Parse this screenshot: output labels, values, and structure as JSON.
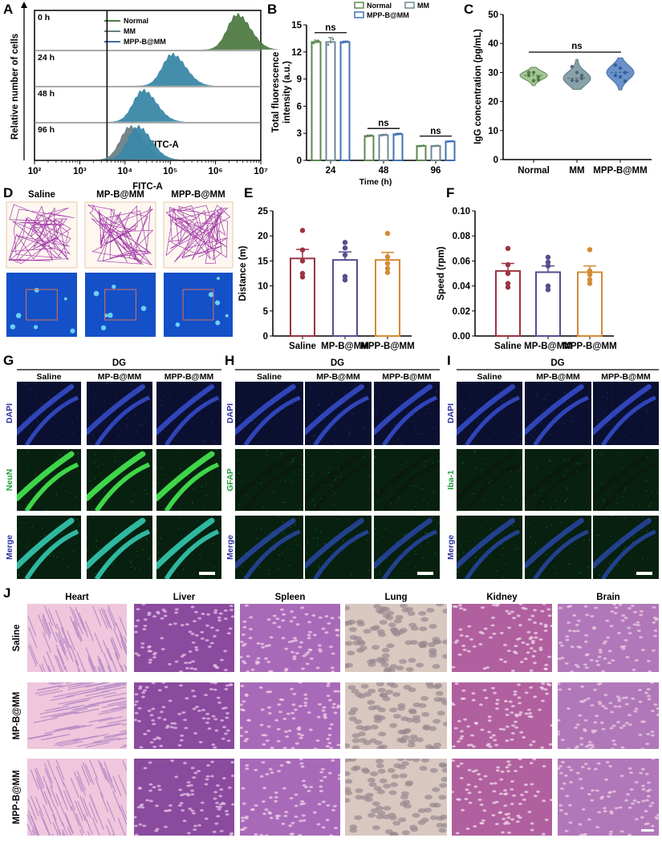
{
  "panel_labels": {
    "a": "A",
    "b": "B",
    "c": "C",
    "d": "D",
    "e": "E",
    "f": "F",
    "g": "G",
    "h": "H",
    "i": "I",
    "j": "J"
  },
  "chart_data": [
    {
      "panel": "A",
      "type": "area",
      "ylabel": "Relative number of cells",
      "xlabel": "FITC-A",
      "annotation": "FITC-A",
      "x_scale": "log",
      "xlim": [
        100,
        10000000
      ],
      "x_tick_labels": [
        "10²",
        "10³",
        "10⁴",
        "10⁵",
        "10⁶",
        "10⁷"
      ],
      "rows": [
        "0 h",
        "24 h",
        "48 h",
        "96 h"
      ],
      "legend": [
        "Normal",
        "MM",
        "MPP-B@MM"
      ],
      "colors": {
        "Normal": "#4f7a45",
        "MM": "#6b7f86",
        "MPP-B@MM": "#3a88a8"
      },
      "gate_x": 4000,
      "peaks": [
        {
          "row": "0 h",
          "series": "Normal",
          "peak_fitc": 3000000
        },
        {
          "row": "24 h",
          "series": "MPP-B@MM",
          "peak_fitc": 110000
        },
        {
          "row": "48 h",
          "series": "MPP-B@MM",
          "peak_fitc": 25000
        },
        {
          "row": "96 h",
          "series": "MM",
          "peak_fitc": 13000
        },
        {
          "row": "96 h",
          "series": "MPP-B@MM",
          "peak_fitc": 19000
        }
      ]
    },
    {
      "panel": "B",
      "type": "bar",
      "xlabel": "Time (h)",
      "ylabel": "Total fluorescence intensity (a.u.)",
      "ylabel_lines": [
        "Total fluorescence",
        "intensity (a.u.)"
      ],
      "ylim": [
        0,
        15
      ],
      "y_ticks": [
        "0",
        "3",
        "6",
        "9",
        "12",
        "15"
      ],
      "categories": [
        "24",
        "48",
        "96"
      ],
      "series": [
        {
          "name": "Normal",
          "color": "#5c8a52",
          "values": [
            13.1,
            2.7,
            1.6
          ],
          "errors": [
            0.2,
            0.1,
            0.05
          ]
        },
        {
          "name": "MM",
          "color": "#6f8893",
          "values": [
            13.1,
            2.8,
            1.6
          ],
          "errors": [
            0.5,
            0.08,
            0.05
          ]
        },
        {
          "name": "MPP-B@MM",
          "color": "#3f73b5",
          "values": [
            13.1,
            2.9,
            2.1
          ],
          "errors": [
            0.1,
            0.1,
            0.05
          ]
        }
      ],
      "significance": [
        "ns",
        "ns",
        "ns"
      ],
      "legend": "top-right"
    },
    {
      "panel": "C",
      "type": "violin",
      "ylabel": "IgG concentration  (pg/mL)",
      "ylim": [
        0,
        50
      ],
      "y_ticks": [
        "0",
        "10",
        "20",
        "30",
        "40",
        "50"
      ],
      "categories": [
        "Normal",
        "MM",
        "MPP-B@MM"
      ],
      "colors": [
        "#9cc08e",
        "#7d97a0",
        "#5b86c3"
      ],
      "point_colors": [
        "#4e7a43",
        "#4f6a74",
        "#2f5f9e"
      ],
      "ranges": [
        [
          25.5,
          31.8
        ],
        [
          24.2,
          34.5
        ],
        [
          24,
          35
        ]
      ],
      "medians": [
        29,
        28,
        30
      ],
      "points": [
        [
          30,
          30,
          28.5,
          29,
          27.2,
          27.5
        ],
        [
          32,
          30,
          28,
          27.3,
          27.1,
          29
        ],
        [
          32.5,
          31.5,
          30,
          29,
          28.5,
          27
        ]
      ],
      "significance": "ns"
    },
    {
      "panel": "E",
      "type": "bar",
      "ylabel": "Distance (m)",
      "ylim": [
        0,
        25
      ],
      "y_ticks": [
        "0",
        "5",
        "10",
        "15",
        "20",
        "25"
      ],
      "categories": [
        "Saline",
        "MP-B@MM",
        "MPP-B@MM"
      ],
      "colors": [
        "#9c3442",
        "#5b4b8c",
        "#d48a34"
      ],
      "values": [
        15.5,
        15.2,
        15.2
      ],
      "errors": [
        1.8,
        1.6,
        1.5
      ],
      "points": [
        [
          21.1,
          17.2,
          15,
          12.5,
          11.8
        ],
        [
          18.7,
          17.6,
          16.2,
          11.9,
          11.2
        ],
        [
          20.5,
          15.8,
          14.5,
          13.5,
          12.7
        ]
      ]
    },
    {
      "panel": "F",
      "type": "bar",
      "ylabel": "Speed (rpm)",
      "ylim": [
        0,
        0.1
      ],
      "y_ticks": [
        "0.00",
        "0.02",
        "0.04",
        "0.06",
        "0.08",
        "0.10"
      ],
      "categories": [
        "Saline",
        "MP-B@MM",
        "MPP-B@MM"
      ],
      "colors": [
        "#9c3442",
        "#5b4b8c",
        "#d48a34"
      ],
      "values": [
        0.052,
        0.051,
        0.051
      ],
      "errors": [
        0.006,
        0.005,
        0.005
      ],
      "points": [
        [
          0.07,
          0.057,
          0.05,
          0.042,
          0.039
        ],
        [
          0.063,
          0.059,
          0.056,
          0.04,
          0.037
        ],
        [
          0.069,
          0.052,
          0.049,
          0.045,
          0.042
        ]
      ]
    }
  ],
  "panel_d": {
    "columns": [
      "Saline",
      "MP-B@MM",
      "MPP-B@MM"
    ]
  },
  "fluorescence": {
    "region": "DG",
    "columns": [
      "Saline",
      "MP-B@MM",
      "MPP-B@MM"
    ],
    "panels": [
      {
        "rows": [
          "DAPI",
          "NeuN",
          "Merge"
        ]
      },
      {
        "rows": [
          "DAPI",
          "GFAP",
          "Merge"
        ]
      },
      {
        "rows": [
          "DAPI",
          "Iba-1",
          "Merge"
        ]
      }
    ],
    "colors": {
      "dapi": "#2a2fa0",
      "marker": "#1e9e3c"
    }
  },
  "histology": {
    "organs": [
      "Heart",
      "Liver",
      "Spleen",
      "Lung",
      "Kidney",
      "Brain"
    ],
    "groups": [
      "Saline",
      "MP-B@MM",
      "MPP-B@MM"
    ]
  }
}
